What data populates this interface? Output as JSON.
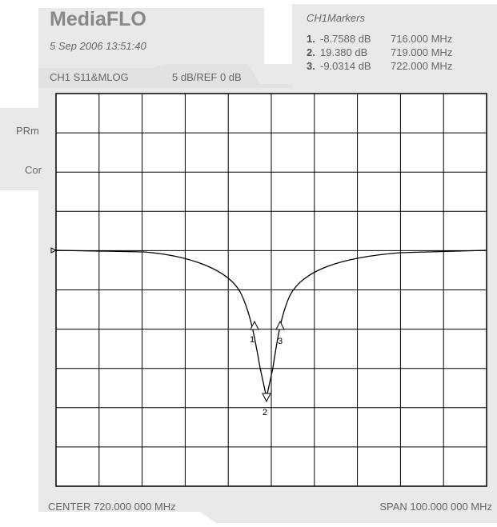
{
  "header": {
    "title": "MediaFLO",
    "timestamp": "5 Sep 2006 13:51:40",
    "channel": "CH1 S11&MLOG",
    "scale": "5 dB/REF 0 dB"
  },
  "markers": {
    "title": "CH1Markers",
    "items": [
      {
        "index": "1.",
        "value": "-8.7588 dB",
        "frequency": "716.000 MHz"
      },
      {
        "index": "2.",
        "value": "19.380 dB",
        "frequency": "719.000 MHz"
      },
      {
        "index": "3.",
        "value": "-9.0314 dB",
        "frequency": "722.000 MHz"
      }
    ]
  },
  "side_tabs": [
    "PRm",
    "Cor"
  ],
  "marker_labels": [
    "1",
    "2",
    "3"
  ],
  "footer": {
    "center": "CENTER 720.000 000 MHz",
    "span": "SPAN 100.000 000 MHz"
  }
}
